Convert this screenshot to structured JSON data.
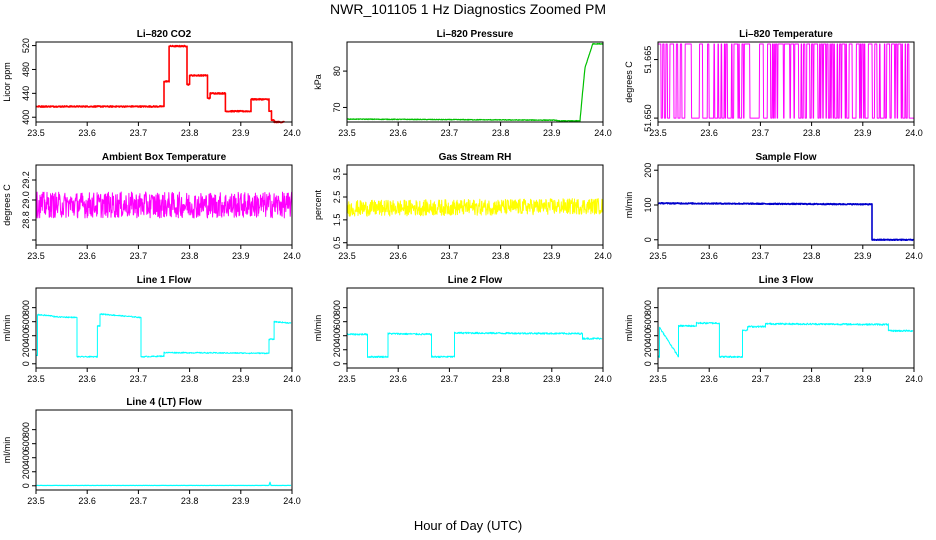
{
  "page": {
    "title": "NWR_101105  1 Hz Diagnostics Zoomed PM",
    "xlabel": "Hour of Day (UTC)"
  },
  "chart_data": [
    {
      "id": "co2",
      "type": "line",
      "title": "Li–820 CO2",
      "ylabel": "Licor ppm",
      "color": "#ff0000",
      "xlim": [
        23.5,
        24.0
      ],
      "ylim": [
        392,
        526
      ],
      "xticks": [
        "23.5",
        "23.6",
        "23.7",
        "23.8",
        "23.9",
        "24.0"
      ],
      "yticks": [
        400,
        440,
        480,
        520
      ],
      "x": [
        23.5,
        23.75,
        23.75,
        23.76,
        23.76,
        23.795,
        23.795,
        23.8,
        23.8,
        23.835,
        23.835,
        23.84,
        23.84,
        23.87,
        23.87,
        23.92,
        23.92,
        23.955,
        23.955,
        23.96,
        23.96,
        23.965,
        23.965,
        23.985
      ],
      "y": [
        418,
        418,
        460,
        460,
        519,
        519,
        455,
        455,
        470,
        470,
        432,
        432,
        440,
        440,
        410,
        410,
        430,
        430,
        410,
        410,
        395,
        395,
        392,
        392
      ],
      "noise": 1
    },
    {
      "id": "pressure",
      "type": "line",
      "title": "Li–820 Pressure",
      "ylabel": "kPa",
      "color": "#00c000",
      "xlim": [
        23.5,
        24.0
      ],
      "ylim": [
        66,
        88
      ],
      "xticks": [
        "23.5",
        "23.6",
        "23.7",
        "23.8",
        "23.9",
        "24.0"
      ],
      "yticks": [
        70,
        80
      ],
      "x": [
        23.5,
        23.91,
        23.91,
        23.955,
        23.96,
        23.965,
        23.98,
        24.0
      ],
      "y": [
        66.8,
        66.5,
        66.3,
        66.3,
        74,
        81,
        87.5,
        87.5
      ],
      "noise": 0.1
    },
    {
      "id": "temperature",
      "type": "line",
      "title": "Li–820 Temperature",
      "ylabel": "degrees C",
      "color": "#ff00ff",
      "xlim": [
        23.5,
        24.0
      ],
      "ylim": [
        51.649,
        51.6695
      ],
      "xticks": [
        "23.5",
        "23.6",
        "23.7",
        "23.8",
        "23.9",
        "24.0"
      ],
      "yticks": [
        51.65,
        51.665
      ],
      "ytick_labels": [
        "51.650",
        "51.665"
      ],
      "x": [
        23.5,
        24.0
      ],
      "y": [
        51.65,
        51.669
      ],
      "pattern": "toggle"
    },
    {
      "id": "ambient",
      "type": "line",
      "title": "Ambient Box Temperature",
      "ylabel": "degrees C",
      "color": "#ff00ff",
      "xlim": [
        23.5,
        24.0
      ],
      "ylim": [
        28.55,
        29.35
      ],
      "xticks": [
        "23.5",
        "23.6",
        "23.7",
        "23.8",
        "23.9",
        "24.0"
      ],
      "yticks": [
        28.6,
        28.8,
        29.0,
        29.2
      ],
      "ytick_labels": [
        "",
        "28.8",
        "29.0",
        "29.2"
      ],
      "x": [
        23.5,
        24.0
      ],
      "y": [
        28.95,
        28.95
      ],
      "noise": 0.13
    },
    {
      "id": "rh",
      "type": "line",
      "title": "Gas Stream RH",
      "ylabel": "percent",
      "color": "#ffff00",
      "xlim": [
        23.5,
        24.0
      ],
      "ylim": [
        0.4,
        3.9
      ],
      "xticks": [
        "23.5",
        "23.6",
        "23.7",
        "23.8",
        "23.9",
        "24.0"
      ],
      "yticks": [
        0.5,
        1.5,
        2.5,
        3.5
      ],
      "ytick_labels": [
        "0.5",
        "1.5",
        "2.5",
        "3.5"
      ],
      "x": [
        23.5,
        24.0
      ],
      "y": [
        2.0,
        2.1
      ],
      "noise": 0.35
    },
    {
      "id": "sample",
      "type": "line",
      "title": "Sample Flow",
      "ylabel": "ml/min",
      "color": "#0000cc",
      "xlim": [
        23.5,
        24.0
      ],
      "ylim": [
        -15,
        215
      ],
      "xticks": [
        "23.5",
        "23.6",
        "23.7",
        "23.8",
        "23.9",
        "24.0"
      ],
      "yticks": [
        0,
        100,
        200
      ],
      "x": [
        23.5,
        23.918,
        23.918,
        24.0
      ],
      "y": [
        105,
        102,
        0,
        0
      ],
      "noise": 1.5
    },
    {
      "id": "line1",
      "type": "line",
      "title": "Line 1 Flow",
      "ylabel": "ml/min",
      "color": "#00ffff",
      "xlim": [
        23.5,
        24.0
      ],
      "ylim": [
        -60,
        1080
      ],
      "xticks": [
        "23.5",
        "23.6",
        "23.7",
        "23.8",
        "23.9",
        "24.0"
      ],
      "yticks": [
        0,
        200,
        400,
        600,
        800
      ],
      "x": [
        23.5,
        23.503,
        23.503,
        23.535,
        23.535,
        23.58,
        23.58,
        23.62,
        23.62,
        23.625,
        23.625,
        23.705,
        23.705,
        23.75,
        23.75,
        23.955,
        23.955,
        23.965,
        23.965,
        23.998
      ],
      "y": [
        120,
        120,
        700,
        680,
        670,
        660,
        100,
        100,
        540,
        540,
        710,
        660,
        100,
        110,
        160,
        150,
        350,
        350,
        600,
        580
      ],
      "noise": 8
    },
    {
      "id": "line2",
      "type": "line",
      "title": "Line 2 Flow",
      "ylabel": "ml/min",
      "color": "#00ffff",
      "xlim": [
        23.5,
        24.0
      ],
      "ylim": [
        -60,
        1080
      ],
      "xticks": [
        "23.5",
        "23.6",
        "23.7",
        "23.8",
        "23.9",
        "24.0"
      ],
      "yticks": [
        0,
        200,
        400,
        600,
        800
      ],
      "x": [
        23.5,
        23.54,
        23.54,
        23.58,
        23.58,
        23.665,
        23.665,
        23.71,
        23.71,
        23.96,
        23.96,
        23.998
      ],
      "y": [
        420,
        420,
        100,
        100,
        430,
        420,
        100,
        100,
        440,
        430,
        360,
        360
      ],
      "noise": 12
    },
    {
      "id": "line3",
      "type": "line",
      "title": "Line 3 Flow",
      "ylabel": "ml/min",
      "color": "#00ffff",
      "xlim": [
        23.5,
        24.0
      ],
      "ylim": [
        -60,
        1080
      ],
      "xticks": [
        "23.5",
        "23.6",
        "23.7",
        "23.8",
        "23.9",
        "24.0"
      ],
      "yticks": [
        0,
        200,
        400,
        600,
        800
      ],
      "x": [
        23.5,
        23.503,
        23.503,
        23.54,
        23.54,
        23.575,
        23.575,
        23.62,
        23.62,
        23.665,
        23.665,
        23.675,
        23.675,
        23.71,
        23.71,
        23.95,
        23.95,
        23.998
      ],
      "y": [
        100,
        100,
        520,
        100,
        540,
        540,
        580,
        580,
        100,
        100,
        480,
        480,
        530,
        530,
        570,
        560,
        470,
        470
      ],
      "noise": 12
    },
    {
      "id": "line4",
      "type": "line",
      "title": "Line 4 (LT) Flow",
      "ylabel": "ml/min",
      "color": "#00ffff",
      "xlim": [
        23.5,
        24.0
      ],
      "ylim": [
        -60,
        1080
      ],
      "xticks": [
        "23.5",
        "23.6",
        "23.7",
        "23.8",
        "23.9",
        "24.0"
      ],
      "yticks": [
        0,
        200,
        400,
        600,
        800
      ],
      "x": [
        23.5,
        23.955,
        23.957,
        23.959,
        23.961,
        23.998
      ],
      "y": [
        5,
        5,
        50,
        5,
        5,
        5
      ],
      "noise": 1.5
    }
  ]
}
